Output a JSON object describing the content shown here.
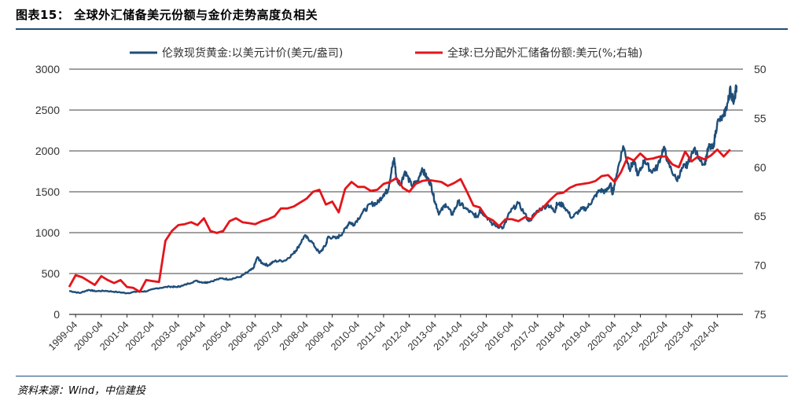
{
  "title": "图表15：  全球外汇储备美元份额与金价走势高度负相关",
  "source": "资料来源：Wind，中信建投",
  "colors": {
    "gold": "#1f4e79",
    "share": "#e3151b",
    "rule": "#1f4e79"
  },
  "chart_data": {
    "type": "line",
    "title": "",
    "x_tick_labels": [
      "1999-04",
      "2000-04",
      "2001-04",
      "2002-04",
      "2003-04",
      "2004-04",
      "2005-04",
      "2006-04",
      "2007-04",
      "2008-04",
      "2009-04",
      "2010-04",
      "2011-04",
      "2012-04",
      "2013-04",
      "2014-04",
      "2015-04",
      "2016-04",
      "2017-04",
      "2018-04",
      "2019-04",
      "2020-04",
      "2021-04",
      "2022-04",
      "2023-04",
      "2024-04"
    ],
    "left_axis": {
      "ylim": [
        0,
        3000
      ],
      "ticks": [
        0,
        500,
        1000,
        1500,
        2000,
        2500,
        3000
      ]
    },
    "right_axis": {
      "ylim": [
        75,
        50
      ],
      "ticks": [
        50,
        55,
        60,
        65,
        70,
        75
      ],
      "inverted": true
    },
    "grid": "horizontal",
    "legend_position": "top",
    "series": [
      {
        "name": "伦敦现货黄金:以美元计价(美元/盎司)",
        "axis": "left",
        "style": "dark-blue-line",
        "points": [
          [
            "1999-01",
            287
          ],
          [
            "1999-06",
            262
          ],
          [
            "1999-10",
            300
          ],
          [
            "2000-01",
            285
          ],
          [
            "2000-06",
            288
          ],
          [
            "2000-12",
            272
          ],
          [
            "2001-04",
            260
          ],
          [
            "2001-09",
            280
          ],
          [
            "2002-01",
            282
          ],
          [
            "2002-06",
            320
          ],
          [
            "2002-12",
            340
          ],
          [
            "2003-03",
            335
          ],
          [
            "2003-06",
            350
          ],
          [
            "2003-12",
            410
          ],
          [
            "2004-04",
            390
          ],
          [
            "2004-06",
            395
          ],
          [
            "2004-12",
            440
          ],
          [
            "2005-04",
            430
          ],
          [
            "2005-09",
            460
          ],
          [
            "2005-12",
            510
          ],
          [
            "2006-03",
            560
          ],
          [
            "2006-05",
            700
          ],
          [
            "2006-07",
            630
          ],
          [
            "2006-10",
            600
          ],
          [
            "2007-01",
            650
          ],
          [
            "2007-06",
            660
          ],
          [
            "2007-10",
            750
          ],
          [
            "2007-12",
            820
          ],
          [
            "2008-03",
            960
          ],
          [
            "2008-06",
            900
          ],
          [
            "2008-10",
            750
          ],
          [
            "2009-01",
            850
          ],
          [
            "2009-02",
            950
          ],
          [
            "2009-06",
            930
          ],
          [
            "2009-09",
            1000
          ],
          [
            "2009-12",
            1130
          ],
          [
            "2010-02",
            1100
          ],
          [
            "2010-06",
            1240
          ],
          [
            "2010-10",
            1350
          ],
          [
            "2011-01",
            1360
          ],
          [
            "2011-04",
            1470
          ],
          [
            "2011-06",
            1520
          ],
          [
            "2011-08",
            1800
          ],
          [
            "2011-09",
            1900
          ],
          [
            "2011-10",
            1650
          ],
          [
            "2011-12",
            1600
          ],
          [
            "2012-02",
            1750
          ],
          [
            "2012-05",
            1580
          ],
          [
            "2012-08",
            1620
          ],
          [
            "2012-10",
            1790
          ],
          [
            "2012-12",
            1680
          ],
          [
            "2013-02",
            1600
          ],
          [
            "2013-04",
            1380
          ],
          [
            "2013-06",
            1230
          ],
          [
            "2013-09",
            1350
          ],
          [
            "2013-12",
            1220
          ],
          [
            "2014-03",
            1380
          ],
          [
            "2014-06",
            1300
          ],
          [
            "2014-10",
            1220
          ],
          [
            "2014-12",
            1200
          ],
          [
            "2015-01",
            1280
          ],
          [
            "2015-04",
            1200
          ],
          [
            "2015-07",
            1100
          ],
          [
            "2015-12",
            1060
          ],
          [
            "2016-03",
            1250
          ],
          [
            "2016-07",
            1360
          ],
          [
            "2016-12",
            1140
          ],
          [
            "2017-04",
            1270
          ],
          [
            "2017-09",
            1340
          ],
          [
            "2017-12",
            1260
          ],
          [
            "2018-01",
            1350
          ],
          [
            "2018-04",
            1340
          ],
          [
            "2018-08",
            1180
          ],
          [
            "2018-12",
            1280
          ],
          [
            "2019-03",
            1300
          ],
          [
            "2019-06",
            1410
          ],
          [
            "2019-09",
            1520
          ],
          [
            "2019-12",
            1500
          ],
          [
            "2020-02",
            1600
          ],
          [
            "2020-03",
            1480
          ],
          [
            "2020-05",
            1720
          ],
          [
            "2020-08",
            2060
          ],
          [
            "2020-11",
            1780
          ],
          [
            "2021-01",
            1870
          ],
          [
            "2021-03",
            1700
          ],
          [
            "2021-06",
            1890
          ],
          [
            "2021-09",
            1750
          ],
          [
            "2021-12",
            1800
          ],
          [
            "2022-03",
            2050
          ],
          [
            "2022-05",
            1850
          ],
          [
            "2022-09",
            1640
          ],
          [
            "2022-12",
            1800
          ],
          [
            "2023-02",
            1830
          ],
          [
            "2023-05",
            2020
          ],
          [
            "2023-10",
            1830
          ],
          [
            "2023-12",
            2050
          ],
          [
            "2024-02",
            2030
          ],
          [
            "2024-04",
            2350
          ],
          [
            "2024-07",
            2420
          ],
          [
            "2024-09",
            2600
          ],
          [
            "2024-10",
            2750
          ],
          [
            "2024-11",
            2650
          ],
          [
            "2024-12",
            2620
          ],
          [
            "2025-01",
            2800
          ]
        ]
      },
      {
        "name": "全球:已分配外汇储备份额:美元(%;右轴)",
        "axis": "right",
        "style": "red-line",
        "points": [
          [
            "1999-01",
            72.2
          ],
          [
            "1999-04",
            71.0
          ],
          [
            "1999-07",
            71.2
          ],
          [
            "1999-10",
            71.6
          ],
          [
            "2000-01",
            72.0
          ],
          [
            "2000-04",
            71.1
          ],
          [
            "2000-07",
            71.5
          ],
          [
            "2000-10",
            71.8
          ],
          [
            "2001-01",
            71.5
          ],
          [
            "2001-04",
            72.2
          ],
          [
            "2001-07",
            72.3
          ],
          [
            "2001-10",
            72.7
          ],
          [
            "2002-01",
            71.5
          ],
          [
            "2002-04",
            71.6
          ],
          [
            "2002-07",
            71.7
          ],
          [
            "2002-10",
            67.5
          ],
          [
            "2003-01",
            66.5
          ],
          [
            "2003-04",
            65.9
          ],
          [
            "2003-07",
            65.8
          ],
          [
            "2003-10",
            65.6
          ],
          [
            "2004-01",
            65.9
          ],
          [
            "2004-04",
            65.2
          ],
          [
            "2004-07",
            66.5
          ],
          [
            "2004-10",
            66.7
          ],
          [
            "2005-01",
            66.5
          ],
          [
            "2005-04",
            65.5
          ],
          [
            "2005-07",
            65.2
          ],
          [
            "2005-10",
            65.6
          ],
          [
            "2006-01",
            65.7
          ],
          [
            "2006-04",
            65.8
          ],
          [
            "2006-07",
            65.5
          ],
          [
            "2006-10",
            65.3
          ],
          [
            "2007-01",
            65.0
          ],
          [
            "2007-04",
            64.2
          ],
          [
            "2007-07",
            64.2
          ],
          [
            "2007-10",
            64.0
          ],
          [
            "2008-01",
            63.6
          ],
          [
            "2008-04",
            63.2
          ],
          [
            "2008-07",
            62.5
          ],
          [
            "2008-10",
            62.3
          ],
          [
            "2009-01",
            63.8
          ],
          [
            "2009-04",
            63.5
          ],
          [
            "2009-07",
            64.6
          ],
          [
            "2009-10",
            62.2
          ],
          [
            "2010-01",
            61.5
          ],
          [
            "2010-04",
            62.0
          ],
          [
            "2010-07",
            62.0
          ],
          [
            "2010-10",
            62.4
          ],
          [
            "2011-01",
            62.3
          ],
          [
            "2011-04",
            61.7
          ],
          [
            "2011-07",
            61.5
          ],
          [
            "2011-10",
            61.1
          ],
          [
            "2012-01",
            62.1
          ],
          [
            "2012-04",
            62.5
          ],
          [
            "2012-07",
            61.7
          ],
          [
            "2012-10",
            61.4
          ],
          [
            "2013-01",
            61.3
          ],
          [
            "2013-04",
            61.4
          ],
          [
            "2013-07",
            61.5
          ],
          [
            "2013-10",
            61.9
          ],
          [
            "2014-01",
            61.6
          ],
          [
            "2014-04",
            61.2
          ],
          [
            "2014-07",
            62.5
          ],
          [
            "2014-10",
            63.9
          ],
          [
            "2015-01",
            64.1
          ],
          [
            "2015-04",
            65.1
          ],
          [
            "2015-07",
            65.4
          ],
          [
            "2015-10",
            66.0
          ],
          [
            "2016-01",
            65.3
          ],
          [
            "2016-04",
            65.3
          ],
          [
            "2016-07",
            65.5
          ],
          [
            "2016-10",
            65.1
          ],
          [
            "2017-01",
            65.3
          ],
          [
            "2017-04",
            64.5
          ],
          [
            "2017-07",
            64.0
          ],
          [
            "2017-10",
            63.3
          ],
          [
            "2018-01",
            62.7
          ],
          [
            "2018-04",
            62.6
          ],
          [
            "2018-07",
            62.1
          ],
          [
            "2018-10",
            61.8
          ],
          [
            "2019-01",
            61.7
          ],
          [
            "2019-04",
            61.6
          ],
          [
            "2019-07",
            61.4
          ],
          [
            "2019-10",
            60.9
          ],
          [
            "2020-01",
            60.8
          ],
          [
            "2020-04",
            61.5
          ],
          [
            "2020-07",
            60.5
          ],
          [
            "2020-10",
            59.0
          ],
          [
            "2021-01",
            59.3
          ],
          [
            "2021-04",
            58.6
          ],
          [
            "2021-07",
            59.2
          ],
          [
            "2021-10",
            59.1
          ],
          [
            "2022-01",
            58.9
          ],
          [
            "2022-04",
            58.9
          ],
          [
            "2022-07",
            59.7
          ],
          [
            "2022-10",
            60.0
          ],
          [
            "2023-01",
            58.4
          ],
          [
            "2023-04",
            59.4
          ],
          [
            "2023-07",
            58.9
          ],
          [
            "2023-10",
            59.2
          ],
          [
            "2024-01",
            58.8
          ],
          [
            "2024-04",
            58.2
          ],
          [
            "2024-07",
            58.9
          ],
          [
            "2024-10",
            58.2
          ]
        ]
      }
    ]
  }
}
